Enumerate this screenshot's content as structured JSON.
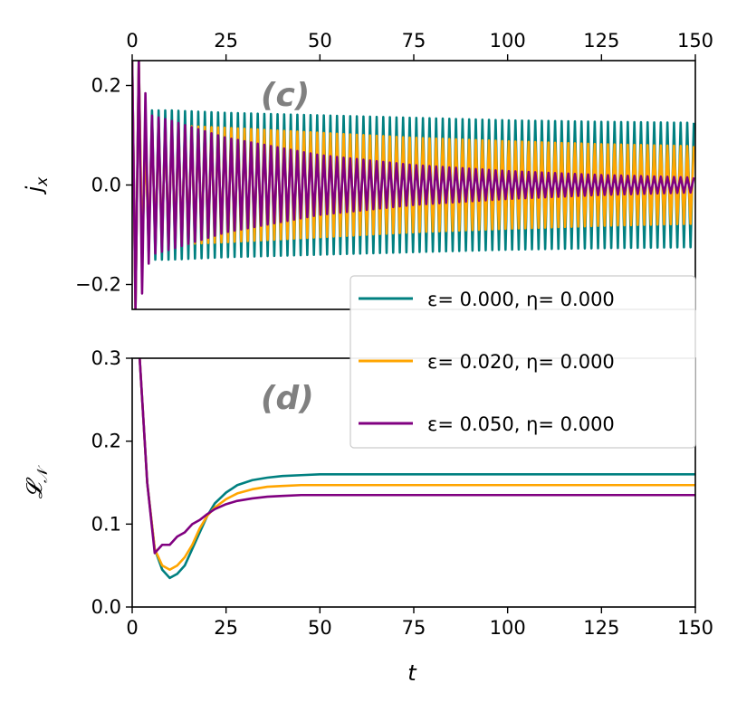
{
  "chart_data": [
    {
      "type": "line",
      "panel_label": "(c)",
      "xlabel": "",
      "ylabel": "j_x",
      "xlim": [
        0,
        150
      ],
      "ylim": [
        -0.25,
        0.25
      ],
      "xticks": [
        "0",
        "25",
        "50",
        "75",
        "100",
        "125",
        "150"
      ],
      "yticks": [
        "−0.2",
        "0.0",
        "0.2"
      ],
      "ytick_values": [
        -0.2,
        0.0,
        0.2
      ],
      "x_axis_ticks_position": "top",
      "grid": false,
      "series": [
        {
          "name": "ε=  0.000, η= 0.000",
          "color": "#008080",
          "oscillation_period": 1.76,
          "envelope": {
            "t": [
              0,
              2,
              3,
              5,
              10,
              25,
              50,
              75,
              100,
              125,
              150
            ],
            "amp": [
              0.25,
              0.25,
              0.1,
              0.15,
              0.15,
              0.145,
              0.14,
              0.135,
              0.13,
              0.127,
              0.125
            ]
          }
        },
        {
          "name": "ε=  0.020, η= 0.000",
          "color": "#FFA500",
          "oscillation_period": 1.76,
          "envelope": {
            "t": [
              0,
              2,
              3,
              5,
              10,
              25,
              50,
              75,
              100,
              125,
              150
            ],
            "amp": [
              0.25,
              0.25,
              0.06,
              0.12,
              0.12,
              0.115,
              0.105,
              0.095,
              0.088,
              0.082,
              0.078
            ]
          }
        },
        {
          "name": "ε=  0.050, η= 0.000",
          "color": "#800080",
          "oscillation_period": 1.76,
          "envelope": {
            "t": [
              0,
              2,
              3,
              5,
              10,
              25,
              50,
              75,
              100,
              125,
              150
            ],
            "amp": [
              0.25,
              0.25,
              0.2,
              0.14,
              0.13,
              0.095,
              0.06,
              0.04,
              0.028,
              0.02,
              0.015
            ]
          }
        }
      ]
    },
    {
      "type": "line",
      "panel_label": "(d)",
      "xlabel": "t",
      "ylabel": "L_N",
      "xlim": [
        0,
        150
      ],
      "ylim": [
        0,
        0.3
      ],
      "xticks": [
        "0",
        "25",
        "50",
        "75",
        "100",
        "125",
        "150"
      ],
      "yticks": [
        "0.0",
        "0.1",
        "0.2",
        "0.3"
      ],
      "ytick_values": [
        0.0,
        0.1,
        0.2,
        0.3
      ],
      "grid": false,
      "series": [
        {
          "name": "ε=  0.000, η= 0.000",
          "color": "#008080",
          "x": [
            0,
            2,
            4,
            6,
            8,
            10,
            12,
            14,
            16,
            18,
            20,
            22,
            25,
            28,
            32,
            36,
            40,
            45,
            50,
            60,
            75,
            100,
            125,
            150
          ],
          "y": [
            0.4,
            0.3,
            0.15,
            0.07,
            0.045,
            0.035,
            0.04,
            0.05,
            0.07,
            0.09,
            0.11,
            0.125,
            0.138,
            0.147,
            0.153,
            0.156,
            0.158,
            0.159,
            0.16,
            0.16,
            0.16,
            0.16,
            0.16,
            0.16
          ]
        },
        {
          "name": "ε=  0.020, η= 0.000",
          "color": "#FFA500",
          "x": [
            0,
            2,
            4,
            6,
            8,
            10,
            12,
            14,
            16,
            18,
            20,
            22,
            25,
            28,
            32,
            36,
            40,
            45,
            50,
            60,
            75,
            100,
            125,
            150
          ],
          "y": [
            0.4,
            0.3,
            0.15,
            0.07,
            0.05,
            0.045,
            0.05,
            0.06,
            0.075,
            0.095,
            0.11,
            0.12,
            0.13,
            0.137,
            0.142,
            0.145,
            0.146,
            0.147,
            0.147,
            0.147,
            0.147,
            0.147,
            0.147,
            0.147
          ]
        },
        {
          "name": "ε=  0.050, η= 0.000",
          "color": "#800080",
          "x": [
            0,
            2,
            4,
            6,
            8,
            10,
            12,
            14,
            16,
            18,
            20,
            22,
            25,
            28,
            32,
            36,
            40,
            45,
            50,
            60,
            75,
            100,
            125,
            150
          ],
          "y": [
            0.4,
            0.3,
            0.15,
            0.065,
            0.075,
            0.075,
            0.085,
            0.09,
            0.1,
            0.105,
            0.112,
            0.118,
            0.124,
            0.128,
            0.131,
            0.133,
            0.134,
            0.135,
            0.135,
            0.135,
            0.135,
            0.135,
            0.135,
            0.135
          ]
        }
      ]
    }
  ]
}
